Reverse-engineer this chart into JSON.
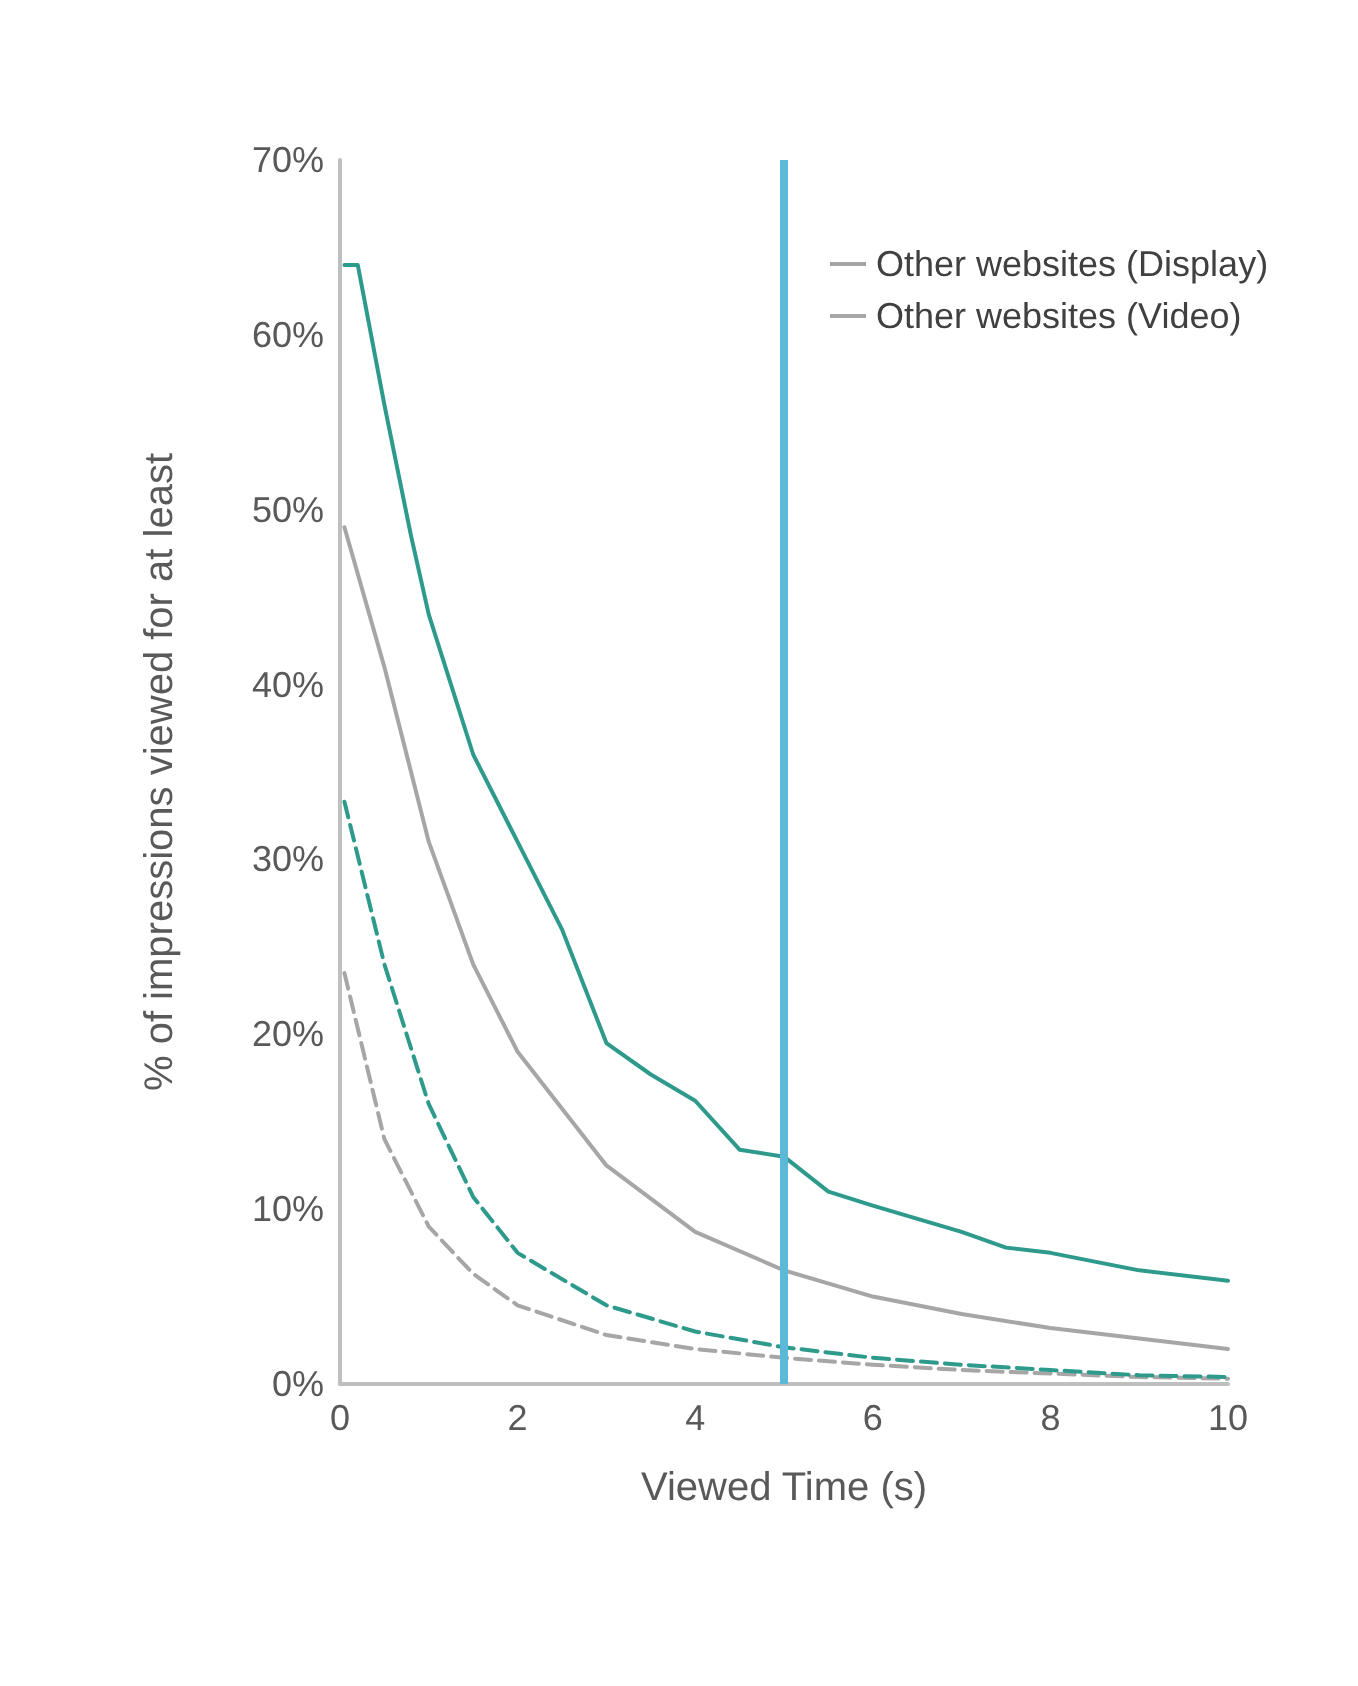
{
  "chart_data": {
    "type": "line",
    "xlabel": "Viewed Time (s)",
    "ylabel": "% of impressions viewed for at least",
    "xlim": [
      0,
      10
    ],
    "xticks": [
      0,
      2,
      4,
      6,
      8,
      10
    ],
    "ylim": [
      0,
      70
    ],
    "yticks": [
      {
        "value": 0,
        "label": "0%"
      },
      {
        "value": 10,
        "label": "10%"
      },
      {
        "value": 20,
        "label": "20%"
      },
      {
        "value": 30,
        "label": "30%"
      },
      {
        "value": 40,
        "label": "40%"
      },
      {
        "value": 50,
        "label": "50%"
      },
      {
        "value": 60,
        "label": "60%"
      },
      {
        "value": 70,
        "label": "70%"
      }
    ],
    "grid": false,
    "legend": "top right",
    "marker": "none",
    "series": [
      {
        "name": "Other websites (Display)",
        "color": "#a6a6a6",
        "line_style": "dashed",
        "x": [
          0.05,
          0.5,
          1,
          1.5,
          2,
          3,
          4,
          5,
          6,
          7,
          8,
          9,
          10
        ],
        "values": [
          23.5,
          14,
          9,
          6.3,
          4.5,
          2.8,
          2,
          1.5,
          1.1,
          0.8,
          0.6,
          0.4,
          0.3
        ]
      },
      {
        "color": "#2e9a8c",
        "line_style": "dashed",
        "x": [
          0.05,
          0.5,
          1,
          1.5,
          2,
          3,
          4,
          5,
          6,
          7,
          8,
          9,
          10
        ],
        "values": [
          33.3,
          24,
          16,
          10.7,
          7.5,
          4.5,
          3,
          2.1,
          1.5,
          1.1,
          0.8,
          0.5,
          0.4
        ]
      },
      {
        "name": "Other websites (Video)",
        "color": "#a6a6a6",
        "line_style": "solid",
        "x": [
          0.05,
          0.5,
          1,
          1.5,
          2,
          3,
          4,
          5,
          6,
          7,
          8,
          9,
          10
        ],
        "values": [
          49,
          41,
          31,
          24,
          19,
          12.5,
          8.7,
          6.5,
          5,
          4,
          3.2,
          2.6,
          2
        ]
      },
      {
        "color": "#2e9a8c",
        "line_style": "solid",
        "x": [
          0.05,
          0.2,
          0.5,
          0.8,
          1,
          1.5,
          2,
          2.5,
          3,
          3.5,
          4,
          4.5,
          5,
          5.5,
          6,
          7,
          7.5,
          8,
          9,
          10
        ],
        "values": [
          64,
          64,
          56,
          48.5,
          44,
          36,
          31,
          26,
          19.5,
          17.7,
          16.2,
          13.4,
          13,
          11,
          10.2,
          8.7,
          7.8,
          7.5,
          6.5,
          5.9
        ]
      }
    ],
    "ref_lines": [
      {
        "axis": "x",
        "value": 5,
        "color": "#5bb8d8",
        "line_style": "solid"
      }
    ]
  }
}
